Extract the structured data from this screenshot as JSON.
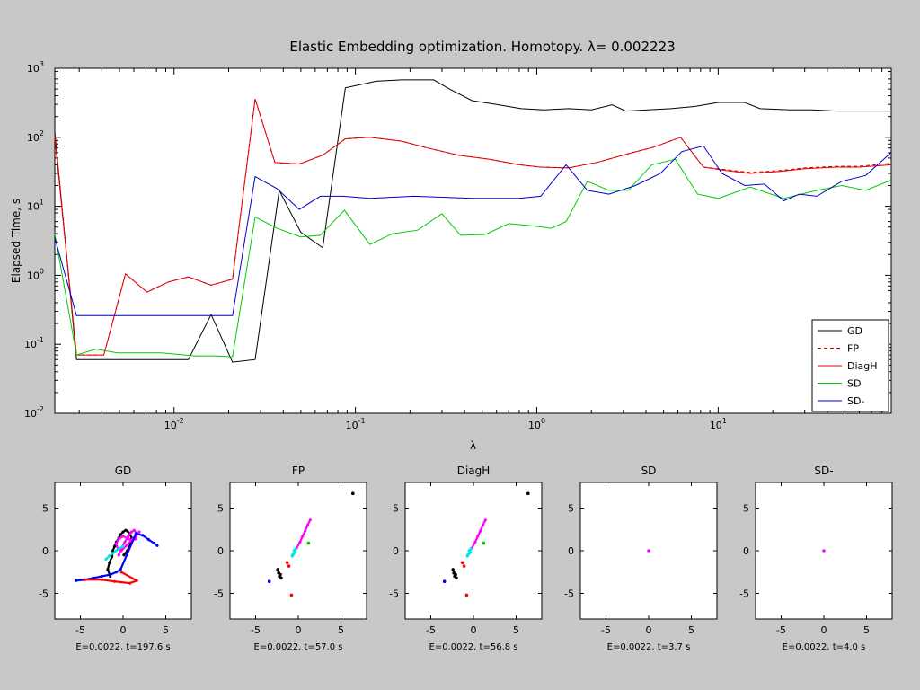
{
  "title": "Elastic Embedding optimization. Homotopy.  λ= 0.002223",
  "colors": {
    "figure_bg": "#c8c8c8",
    "axes_bg": "#ffffff",
    "GD": "#000000",
    "FP": "#cc0000",
    "DiagH": "#e00000",
    "SD": "#00cc00",
    "SD-": "#0000cc",
    "points": [
      "#000000",
      "#0000ff",
      "#ff00ff",
      "#00e5e5",
      "#00cc00",
      "#ff0000"
    ]
  },
  "chart_data": [
    {
      "type": "line",
      "title": "Elastic Embedding optimization. Homotopy.  λ= 0.002223",
      "xlabel": "λ",
      "ylabel": "Elapsed Time, s",
      "x_scale": "log",
      "y_scale": "log",
      "xlim": [
        0.0022,
        90
      ],
      "ylim": [
        0.01,
        1000
      ],
      "x_ticks": [
        {
          "value": 0.01,
          "base": "10",
          "exp": "-2"
        },
        {
          "value": 0.1,
          "base": "10",
          "exp": "-1"
        },
        {
          "value": 1,
          "base": "10",
          "exp": "0"
        },
        {
          "value": 10,
          "base": "10",
          "exp": "1"
        }
      ],
      "y_ticks": [
        {
          "value": 0.01,
          "base": "10",
          "exp": "-2"
        },
        {
          "value": 0.1,
          "base": "10",
          "exp": "-1"
        },
        {
          "value": 1,
          "base": "10",
          "exp": "0"
        },
        {
          "value": 10,
          "base": "10",
          "exp": "1"
        },
        {
          "value": 100,
          "base": "10",
          "exp": "2"
        },
        {
          "value": 1000,
          "base": "10",
          "exp": "3"
        }
      ],
      "grid": false,
      "legend_position": "bottom-right",
      "series": [
        {
          "name": "GD",
          "style": "solid",
          "x": [
            0.0022,
            0.0029,
            0.012,
            0.016,
            0.021,
            0.028,
            0.038,
            0.05,
            0.066,
            0.088,
            0.13,
            0.18,
            0.27,
            0.33,
            0.44,
            0.6,
            0.82,
            1.1,
            1.5,
            2.0,
            2.6,
            3.1,
            4.1,
            5.5,
            7.4,
            10,
            14,
            17,
            25,
            33,
            45,
            60,
            90
          ],
          "y": [
            120,
            0.06,
            0.06,
            0.27,
            0.055,
            0.06,
            17,
            4.2,
            2.5,
            520,
            650,
            680,
            680,
            500,
            340,
            300,
            260,
            250,
            260,
            250,
            295,
            240,
            250,
            260,
            280,
            320,
            320,
            260,
            250,
            250,
            240,
            240,
            240
          ]
        },
        {
          "name": "FP",
          "style": "dashed",
          "x": [
            0.0022,
            0.0029,
            0.0041,
            0.0054,
            0.0071,
            0.0093,
            0.012,
            0.016,
            0.021,
            0.028,
            0.036,
            0.049,
            0.066,
            0.088,
            0.12,
            0.18,
            0.25,
            0.37,
            0.55,
            0.8,
            1.05,
            1.5,
            2.2,
            3.2,
            4.4,
            6.2,
            8.3,
            11,
            15,
            22,
            30,
            45,
            60,
            90
          ],
          "y": [
            110,
            0.07,
            0.07,
            1.05,
            0.57,
            0.8,
            0.95,
            0.72,
            0.88,
            360,
            43,
            41,
            55,
            95,
            100,
            88,
            70,
            55,
            48,
            40,
            37,
            36,
            44,
            58,
            72,
            100,
            37,
            34,
            31,
            33,
            36,
            38,
            38,
            42
          ]
        },
        {
          "name": "DiagH",
          "style": "solid",
          "x": [
            0.0022,
            0.0029,
            0.0041,
            0.0054,
            0.0071,
            0.0093,
            0.012,
            0.016,
            0.021,
            0.028,
            0.036,
            0.049,
            0.066,
            0.088,
            0.12,
            0.18,
            0.25,
            0.37,
            0.55,
            0.8,
            1.05,
            1.5,
            2.2,
            3.2,
            4.4,
            6.2,
            8.3,
            11,
            15,
            22,
            30,
            45,
            60,
            90
          ],
          "y": [
            100,
            0.07,
            0.07,
            1.05,
            0.57,
            0.8,
            0.95,
            0.72,
            0.88,
            360,
            43,
            41,
            55,
            95,
            100,
            88,
            70,
            55,
            48,
            40,
            37,
            36,
            44,
            58,
            72,
            100,
            37,
            33,
            30,
            32,
            35,
            37,
            37,
            40
          ]
        },
        {
          "name": "SD",
          "style": "solid",
          "x": [
            0.0022,
            0.0029,
            0.0037,
            0.0049,
            0.0085,
            0.013,
            0.017,
            0.021,
            0.028,
            0.037,
            0.05,
            0.064,
            0.087,
            0.12,
            0.16,
            0.22,
            0.3,
            0.38,
            0.52,
            0.7,
            0.95,
            1.2,
            1.45,
            1.9,
            2.5,
            3.2,
            4.3,
            5.8,
            7.7,
            10,
            15,
            23,
            35,
            48,
            65,
            90
          ],
          "y": [
            4,
            0.07,
            0.085,
            0.075,
            0.075,
            0.068,
            0.068,
            0.066,
            7,
            4.8,
            3.6,
            3.8,
            8.8,
            2.8,
            4,
            4.5,
            7.8,
            3.8,
            3.9,
            5.6,
            5.2,
            4.8,
            6,
            23,
            17,
            17,
            40,
            48,
            15,
            13,
            19,
            13,
            17,
            20,
            17,
            24
          ]
        },
        {
          "name": "SD-",
          "style": "solid",
          "x": [
            0.0022,
            0.0029,
            0.021,
            0.028,
            0.037,
            0.049,
            0.064,
            0.085,
            0.12,
            0.21,
            0.45,
            0.8,
            1.05,
            1.45,
            1.9,
            2.5,
            3.5,
            4.8,
            6.3,
            8.3,
            10.5,
            14,
            18,
            23,
            28,
            35,
            48,
            65,
            90
          ],
          "y": [
            3.5,
            0.26,
            0.26,
            27,
            18,
            9,
            14,
            14,
            13,
            14,
            13,
            13,
            14,
            40,
            17,
            15,
            20,
            30,
            62,
            75,
            30,
            20,
            21,
            12,
            15,
            14,
            23,
            28,
            60
          ]
        }
      ]
    },
    {
      "type": "scatter",
      "title": "GD",
      "xlabel": "E=0.0022, t=197.6 s",
      "xlim": [
        -8,
        8
      ],
      "ylim": [
        -8,
        8
      ],
      "x_ticks": [
        "-5",
        "0",
        "5"
      ],
      "y_ticks": [
        "5",
        "0",
        "-5"
      ],
      "series": [
        {
          "name": "",
          "color": "#000000",
          "type": "curve",
          "x": [
            -1.5,
            -1.8,
            -1.6,
            -1.3,
            -1.2,
            -1.0,
            -0.8,
            -0.5,
            -0.3,
            0.0,
            0.3,
            0.5,
            0.8,
            1.0,
            0.9,
            0.7,
            0.5,
            0.3,
            0.1
          ],
          "y": [
            -3.0,
            -2.2,
            -1.4,
            -0.7,
            0.0,
            0.5,
            1.0,
            1.5,
            1.9,
            2.2,
            2.4,
            2.3,
            2.0,
            1.5,
            0.9,
            0.4,
            0.0,
            -0.3,
            -0.5
          ]
        },
        {
          "name": "",
          "color": "#ff00ff",
          "type": "curve",
          "x": [
            -0.5,
            -0.2,
            0.2,
            0.6,
            1.0,
            1.3,
            1.6,
            1.5,
            1.1,
            0.6,
            0.0,
            -0.5,
            -0.8,
            -0.6,
            -0.2,
            0.4,
            1.2,
            1.9
          ],
          "y": [
            -0.5,
            0.3,
            1.0,
            1.7,
            2.2,
            2.4,
            2.0,
            1.4,
            1.2,
            1.4,
            1.7,
            1.4,
            0.8,
            0.2,
            0.0,
            0.6,
            1.5,
            2.2
          ]
        },
        {
          "name": "",
          "color": "#00e5e5",
          "type": "curve",
          "x": [
            -2.0,
            -1.6,
            -1.2,
            -0.8,
            -0.4,
            0.0
          ],
          "y": [
            -1.0,
            -0.6,
            -0.3,
            0.0,
            0.3,
            0.5
          ]
        },
        {
          "name": "",
          "color": "#0000ff",
          "type": "curve",
          "x": [
            -5.5,
            -4.5,
            -3.5,
            -2.5,
            -1.5,
            -0.8,
            -0.3,
            1.5,
            2.3,
            3.0,
            3.6,
            4.0
          ],
          "y": [
            -3.5,
            -3.4,
            -3.2,
            -3.0,
            -2.8,
            -2.5,
            -2.2,
            2.0,
            1.8,
            1.3,
            0.9,
            0.6
          ]
        },
        {
          "name": "",
          "color": "#ff0000",
          "type": "curve",
          "x": [
            -4.5,
            -2.5,
            -1.0,
            0.8,
            1.6,
            -0.2
          ],
          "y": [
            -3.4,
            -3.4,
            -3.6,
            -3.8,
            -3.5,
            -2.5
          ]
        }
      ]
    },
    {
      "type": "scatter",
      "title": "FP",
      "xlabel": "E=0.0022, t=57.0 s",
      "xlim": [
        -8,
        8
      ],
      "ylim": [
        -8,
        8
      ],
      "x_ticks": [
        "-5",
        "0",
        "5"
      ],
      "y_ticks": [
        "5",
        "0",
        "-5"
      ],
      "series": [
        {
          "name": "",
          "color": "#000000",
          "type": "points",
          "x": [
            6.4,
            -2.2,
            -2.3,
            -2.4,
            -2.1,
            -2.0
          ],
          "y": [
            6.7,
            -3.0,
            -2.6,
            -2.2,
            -2.8,
            -3.2
          ]
        },
        {
          "name": "",
          "color": "#ff00ff",
          "type": "curve",
          "x": [
            -0.2,
            0.2,
            0.5,
            0.8,
            1.1,
            1.4
          ],
          "y": [
            0.3,
            1.0,
            1.7,
            2.3,
            3.0,
            3.6
          ]
        },
        {
          "name": "",
          "color": "#00e5e5",
          "type": "points",
          "x": [
            -0.6,
            -0.4,
            -0.5,
            -0.3,
            -0.7
          ],
          "y": [
            -0.4,
            -0.2,
            0.0,
            0.2,
            -0.6
          ]
        },
        {
          "name": "",
          "color": "#00cc00",
          "type": "points",
          "x": [
            1.2
          ],
          "y": [
            0.9
          ]
        },
        {
          "name": "",
          "color": "#0000ff",
          "type": "points",
          "x": [
            -3.4
          ],
          "y": [
            -3.6
          ]
        },
        {
          "name": "",
          "color": "#ff0000",
          "type": "points",
          "x": [
            -0.8,
            -1.1,
            -1.3
          ],
          "y": [
            -5.2,
            -1.8,
            -1.4
          ]
        }
      ]
    },
    {
      "type": "scatter",
      "title": "DiagH",
      "xlabel": "E=0.0022, t=56.8 s",
      "xlim": [
        -8,
        8
      ],
      "ylim": [
        -8,
        8
      ],
      "x_ticks": [
        "-5",
        "0",
        "5"
      ],
      "y_ticks": [
        "5",
        "0",
        "-5"
      ],
      "series": [
        {
          "name": "",
          "color": "#000000",
          "type": "points",
          "x": [
            6.4,
            -2.2,
            -2.3,
            -2.4,
            -2.1,
            -2.0
          ],
          "y": [
            6.7,
            -3.0,
            -2.6,
            -2.2,
            -2.8,
            -3.2
          ]
        },
        {
          "name": "",
          "color": "#ff00ff",
          "type": "curve",
          "x": [
            -0.2,
            0.2,
            0.5,
            0.8,
            1.1,
            1.4
          ],
          "y": [
            0.3,
            1.0,
            1.7,
            2.3,
            3.0,
            3.6
          ]
        },
        {
          "name": "",
          "color": "#00e5e5",
          "type": "points",
          "x": [
            -0.6,
            -0.4,
            -0.5,
            -0.3,
            -0.7
          ],
          "y": [
            -0.4,
            -0.2,
            0.0,
            0.2,
            -0.6
          ]
        },
        {
          "name": "",
          "color": "#00cc00",
          "type": "points",
          "x": [
            1.2
          ],
          "y": [
            0.9
          ]
        },
        {
          "name": "",
          "color": "#0000ff",
          "type": "points",
          "x": [
            -3.4
          ],
          "y": [
            -3.6
          ]
        },
        {
          "name": "",
          "color": "#ff0000",
          "type": "points",
          "x": [
            -0.8,
            -1.1,
            -1.3
          ],
          "y": [
            -5.2,
            -1.8,
            -1.4
          ]
        }
      ]
    },
    {
      "type": "scatter",
      "title": "SD",
      "xlabel": "E=0.0022, t=3.7 s",
      "xlim": [
        -8,
        8
      ],
      "ylim": [
        -8,
        8
      ],
      "x_ticks": [
        "-5",
        "0",
        "5"
      ],
      "y_ticks": [
        "5",
        "0",
        "-5"
      ],
      "series": [
        {
          "name": "",
          "color": "#ff00ff",
          "type": "points",
          "x": [
            0.0
          ],
          "y": [
            0.0
          ]
        }
      ]
    },
    {
      "type": "scatter",
      "title": "SD-",
      "xlabel": "E=0.0022, t=4.0 s",
      "xlim": [
        -8,
        8
      ],
      "ylim": [
        -8,
        8
      ],
      "x_ticks": [
        "-5",
        "0",
        "5"
      ],
      "y_ticks": [
        "5",
        "0",
        "-5"
      ],
      "series": [
        {
          "name": "",
          "color": "#ff00ff",
          "type": "points",
          "x": [
            0.0
          ],
          "y": [
            0.0
          ]
        }
      ]
    }
  ]
}
